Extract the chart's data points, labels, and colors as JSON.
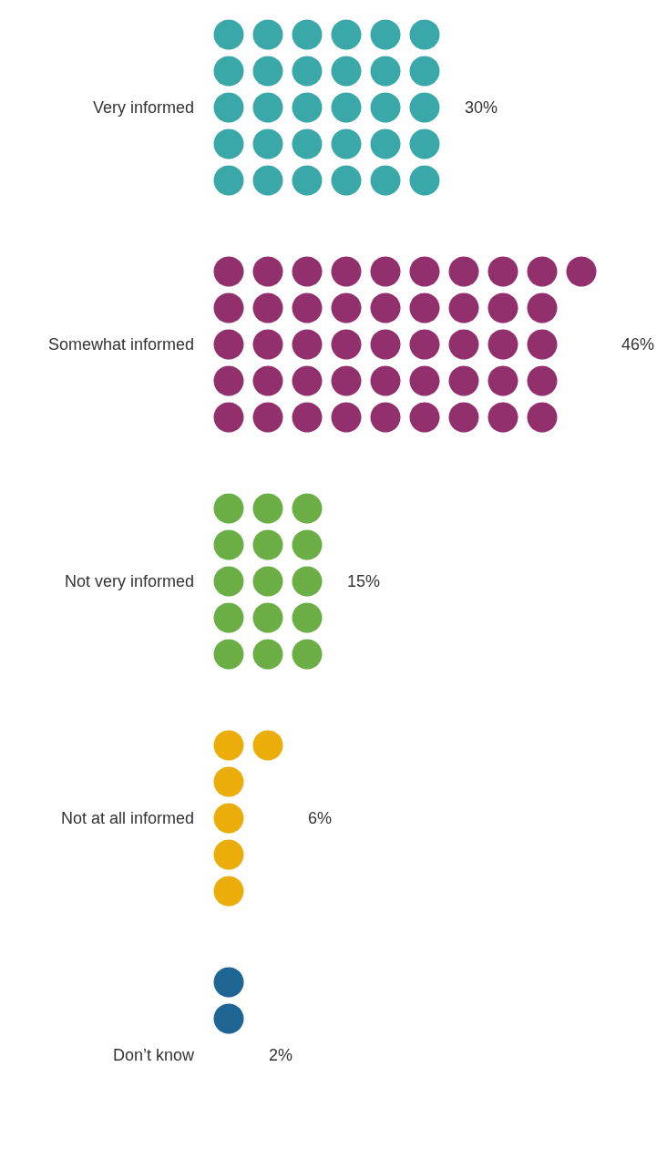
{
  "chart_data": {
    "type": "other",
    "categories": [
      "Very informed",
      "Somewhat informed",
      "Not very informed",
      "Not at all informed",
      "Don’t know"
    ],
    "values": [
      30,
      46,
      15,
      6,
      2
    ],
    "value_labels": [
      "30%",
      "46%",
      "15%",
      "6%",
      "2%"
    ],
    "colors": [
      "#3aa8a8",
      "#92306e",
      "#6aae45",
      "#eaad0a",
      "#1e6594"
    ]
  }
}
